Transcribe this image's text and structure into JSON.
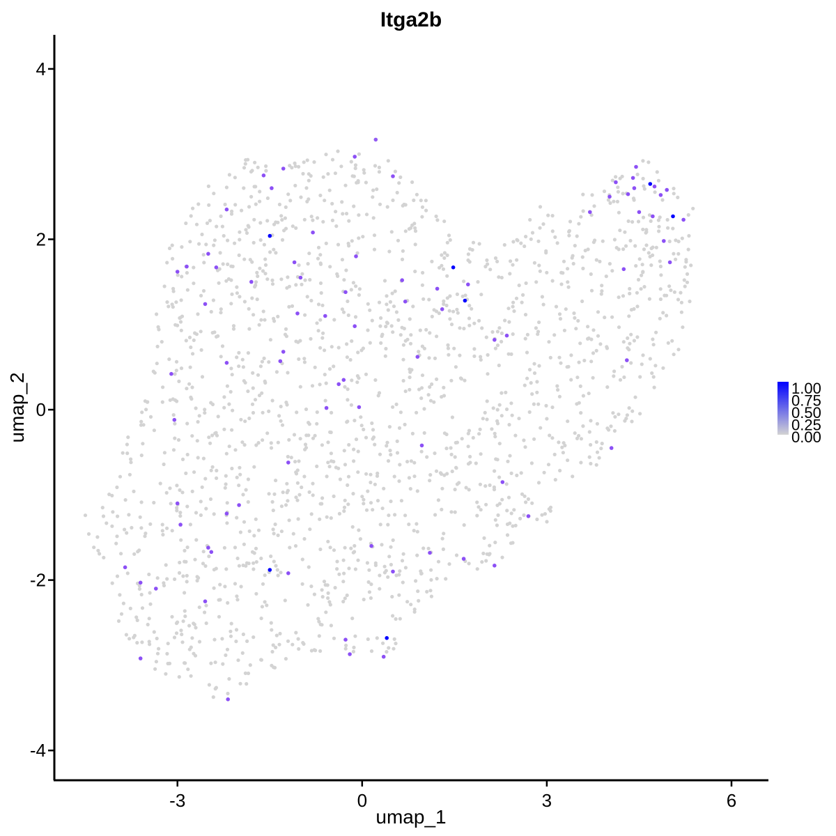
{
  "chart_data": {
    "type": "scatter",
    "title": "Itga2b",
    "xlabel": "umap_1",
    "ylabel": "umap_2",
    "xlim": [
      -5.0,
      6.6
    ],
    "ylim": [
      -4.35,
      4.4
    ],
    "x_ticks": [
      -3,
      0,
      3,
      6
    ],
    "y_ticks": [
      -4,
      -2,
      0,
      2,
      4
    ],
    "x_tick_labels": [
      "-3",
      "0",
      "3",
      "6"
    ],
    "y_tick_labels": [
      "-4",
      "-2",
      "0",
      "2",
      "4"
    ],
    "grid": false,
    "legend": {
      "placement": "right",
      "type": "color-gradient",
      "min": 0.0,
      "max": 1.0,
      "labels": [
        "1.00",
        "0.75",
        "0.50",
        "0.25",
        "0.00"
      ],
      "low_color": "#d3d3d3",
      "high_color": "#0000ff"
    },
    "expressing_points": [
      {
        "x": 0.22,
        "y": 3.17,
        "v": 0.55
      },
      {
        "x": -0.12,
        "y": 2.97,
        "v": 0.6
      },
      {
        "x": 0.5,
        "y": 2.74,
        "v": 0.6
      },
      {
        "x": -1.28,
        "y": 2.83,
        "v": 0.6
      },
      {
        "x": -1.6,
        "y": 2.75,
        "v": 0.6
      },
      {
        "x": -1.47,
        "y": 2.6,
        "v": 0.6
      },
      {
        "x": -2.2,
        "y": 2.35,
        "v": 0.6
      },
      {
        "x": -1.5,
        "y": 2.04,
        "v": 1.0
      },
      {
        "x": -0.8,
        "y": 2.08,
        "v": 0.6
      },
      {
        "x": -2.5,
        "y": 1.83,
        "v": 0.6
      },
      {
        "x": -3.0,
        "y": 1.62,
        "v": 0.6
      },
      {
        "x": -2.85,
        "y": 1.68,
        "v": 0.6
      },
      {
        "x": -2.37,
        "y": 1.67,
        "v": 0.6
      },
      {
        "x": -1.1,
        "y": 1.73,
        "v": 0.6
      },
      {
        "x": -0.1,
        "y": 1.8,
        "v": 0.6
      },
      {
        "x": -1.0,
        "y": 1.55,
        "v": 0.6
      },
      {
        "x": -1.8,
        "y": 1.5,
        "v": 0.6
      },
      {
        "x": -2.55,
        "y": 1.24,
        "v": 0.6
      },
      {
        "x": -1.05,
        "y": 1.13,
        "v": 0.6
      },
      {
        "x": -0.6,
        "y": 1.1,
        "v": 0.6
      },
      {
        "x": -0.27,
        "y": 1.38,
        "v": 0.6
      },
      {
        "x": -0.12,
        "y": 0.98,
        "v": 0.6
      },
      {
        "x": 0.65,
        "y": 1.52,
        "v": 0.6
      },
      {
        "x": 0.7,
        "y": 1.27,
        "v": 0.6
      },
      {
        "x": 1.22,
        "y": 1.42,
        "v": 0.6
      },
      {
        "x": 1.3,
        "y": 1.18,
        "v": 0.6
      },
      {
        "x": 1.48,
        "y": 1.67,
        "v": 1.0
      },
      {
        "x": 1.72,
        "y": 1.47,
        "v": 0.6
      },
      {
        "x": 1.67,
        "y": 1.28,
        "v": 1.0
      },
      {
        "x": 2.15,
        "y": 0.82,
        "v": 0.6
      },
      {
        "x": 2.35,
        "y": 0.87,
        "v": 0.6
      },
      {
        "x": 0.9,
        "y": 0.62,
        "v": 0.6
      },
      {
        "x": -1.33,
        "y": 0.57,
        "v": 0.6
      },
      {
        "x": -1.28,
        "y": 0.68,
        "v": 0.6
      },
      {
        "x": -2.2,
        "y": 0.55,
        "v": 0.6
      },
      {
        "x": -3.1,
        "y": 0.42,
        "v": 0.6
      },
      {
        "x": -0.38,
        "y": 0.3,
        "v": 0.6
      },
      {
        "x": -0.3,
        "y": 0.35,
        "v": 0.6
      },
      {
        "x": -0.58,
        "y": 0.02,
        "v": 0.6
      },
      {
        "x": -0.05,
        "y": 0.03,
        "v": 0.6
      },
      {
        "x": -3.05,
        "y": -0.12,
        "v": 0.6
      },
      {
        "x": 0.97,
        "y": -0.42,
        "v": 0.6
      },
      {
        "x": 4.05,
        "y": -0.45,
        "v": 0.6
      },
      {
        "x": -1.2,
        "y": -0.62,
        "v": 0.6
      },
      {
        "x": 2.28,
        "y": -0.85,
        "v": 0.6
      },
      {
        "x": -3.0,
        "y": -1.1,
        "v": 0.6
      },
      {
        "x": -2.0,
        "y": -1.12,
        "v": 0.6
      },
      {
        "x": -2.2,
        "y": -1.22,
        "v": 0.6
      },
      {
        "x": -2.95,
        "y": -1.35,
        "v": 0.6
      },
      {
        "x": 2.7,
        "y": -1.25,
        "v": 0.6
      },
      {
        "x": -2.5,
        "y": -1.62,
        "v": 0.6
      },
      {
        "x": -2.45,
        "y": -1.67,
        "v": 0.6
      },
      {
        "x": 0.15,
        "y": -1.6,
        "v": 0.6
      },
      {
        "x": 1.1,
        "y": -1.68,
        "v": 0.6
      },
      {
        "x": 1.65,
        "y": -1.75,
        "v": 0.6
      },
      {
        "x": 2.15,
        "y": -1.83,
        "v": 0.6
      },
      {
        "x": -3.85,
        "y": -1.85,
        "v": 0.6
      },
      {
        "x": -1.5,
        "y": -1.88,
        "v": 1.0
      },
      {
        "x": -1.2,
        "y": -1.92,
        "v": 0.6
      },
      {
        "x": 0.5,
        "y": -1.9,
        "v": 0.6
      },
      {
        "x": -3.6,
        "y": -2.03,
        "v": 0.6
      },
      {
        "x": -3.35,
        "y": -2.1,
        "v": 0.6
      },
      {
        "x": -2.55,
        "y": -2.25,
        "v": 0.6
      },
      {
        "x": -0.27,
        "y": -2.7,
        "v": 0.6
      },
      {
        "x": 0.4,
        "y": -2.68,
        "v": 1.0
      },
      {
        "x": -0.2,
        "y": -2.87,
        "v": 0.6
      },
      {
        "x": 0.35,
        "y": -2.9,
        "v": 0.6
      },
      {
        "x": -3.6,
        "y": -2.92,
        "v": 0.6
      },
      {
        "x": -2.18,
        "y": -3.4,
        "v": 0.6
      },
      {
        "x": 4.12,
        "y": 2.67,
        "v": 0.6
      },
      {
        "x": 4.45,
        "y": 2.85,
        "v": 0.6
      },
      {
        "x": 4.4,
        "y": 2.72,
        "v": 0.6
      },
      {
        "x": 4.42,
        "y": 2.6,
        "v": 0.6
      },
      {
        "x": 4.32,
        "y": 2.53,
        "v": 0.6
      },
      {
        "x": 4.68,
        "y": 2.65,
        "v": 1.0
      },
      {
        "x": 4.75,
        "y": 2.62,
        "v": 0.6
      },
      {
        "x": 4.95,
        "y": 2.58,
        "v": 0.6
      },
      {
        "x": 4.85,
        "y": 2.52,
        "v": 0.6
      },
      {
        "x": 4.02,
        "y": 2.5,
        "v": 0.6
      },
      {
        "x": 4.5,
        "y": 2.32,
        "v": 0.6
      },
      {
        "x": 4.72,
        "y": 2.27,
        "v": 0.6
      },
      {
        "x": 5.05,
        "y": 2.27,
        "v": 1.0
      },
      {
        "x": 5.22,
        "y": 2.23,
        "v": 0.6
      },
      {
        "x": 3.7,
        "y": 2.32,
        "v": 0.6
      },
      {
        "x": 4.9,
        "y": 1.98,
        "v": 0.6
      },
      {
        "x": 5.0,
        "y": 1.73,
        "v": 0.6
      },
      {
        "x": 4.25,
        "y": 1.65,
        "v": 0.6
      },
      {
        "x": 4.3,
        "y": 0.58,
        "v": 0.6
      }
    ]
  }
}
